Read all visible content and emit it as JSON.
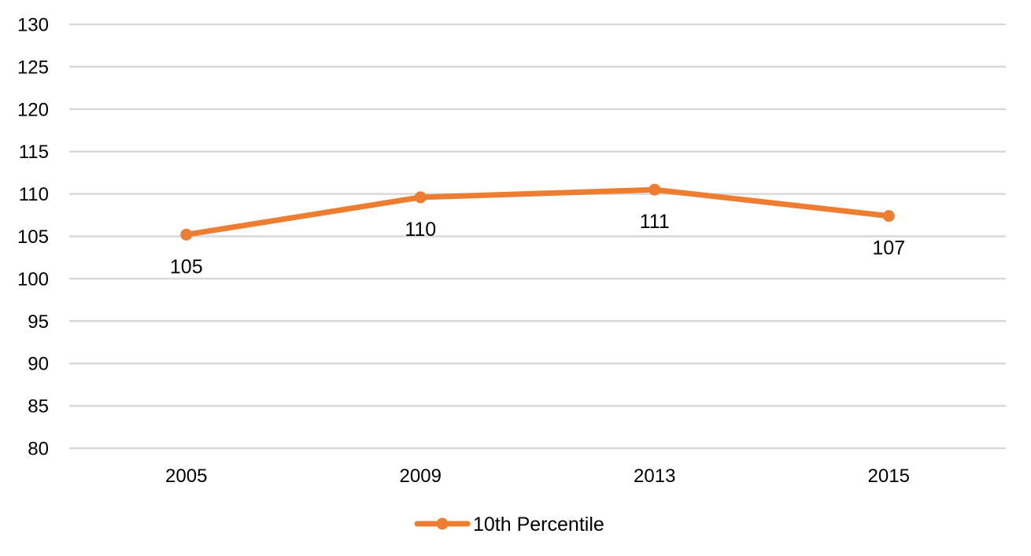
{
  "chart_data": {
    "type": "line",
    "title": "",
    "xlabel": "",
    "ylabel": "",
    "categories": [
      "2005",
      "2009",
      "2013",
      "2015"
    ],
    "ylim": [
      80,
      130
    ],
    "y_ticks": [
      80,
      85,
      90,
      95,
      100,
      105,
      110,
      115,
      120,
      125,
      130
    ],
    "grid": true,
    "legend_position": "bottom",
    "series": [
      {
        "name": "10th Percentile",
        "values": [
          105.2,
          109.6,
          110.5,
          107.4
        ],
        "data_labels": [
          "105",
          "110",
          "111",
          "107"
        ],
        "color": "#ed7d31"
      }
    ]
  }
}
